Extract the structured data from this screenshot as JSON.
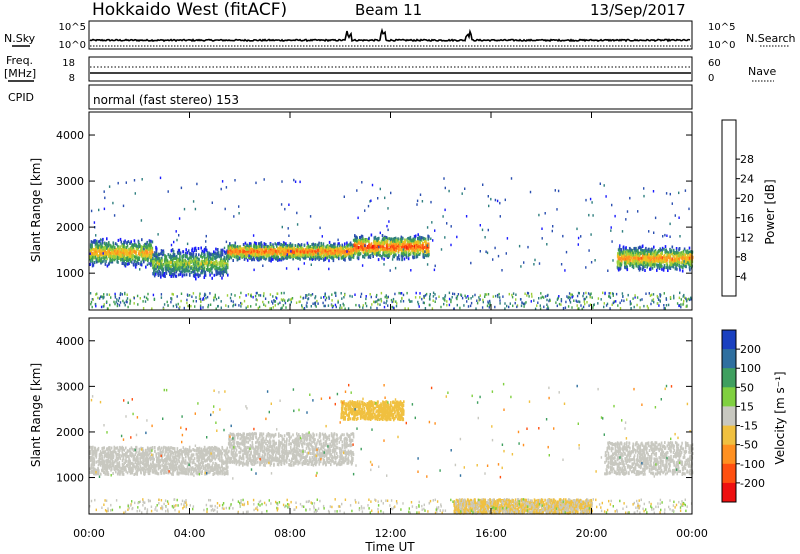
{
  "header": {
    "radar": "Hokkaido West (fitACF)",
    "beam": "Beam 11",
    "date": "13/Sep/2017"
  },
  "noise_panel": {
    "left_label": "N.Sky",
    "right_label": "N.Search",
    "left_ticks": [
      "10^5",
      "10^0"
    ],
    "right_ticks": [
      "10^5",
      "10^0"
    ]
  },
  "freq_panel": {
    "left_label_1": "Freq.",
    "left_label_2": "[MHz]",
    "left_ticks": [
      "18",
      "8"
    ],
    "right_label": "Nave",
    "right_ticks": [
      "60",
      "0"
    ]
  },
  "cpid_panel": {
    "label": "CPID",
    "text": "normal (fast stereo) 153"
  },
  "time_axis": {
    "ticks": [
      "00:00",
      "04:00",
      "08:00",
      "12:00",
      "16:00",
      "20:00",
      "00:00"
    ],
    "label": "Time UT"
  },
  "range_axis": {
    "label": "Slant Range [km]",
    "ticks": [
      "1000",
      "2000",
      "3000",
      "4000"
    ]
  },
  "power_scale": {
    "label": "Power [dB]",
    "ticks": [
      "4",
      "8",
      "12",
      "16",
      "20",
      "24",
      "28"
    ],
    "colors": [
      "#1a1aff",
      "#2b4fb0",
      "#2f7f7f",
      "#40a050",
      "#9ecf3a",
      "#f0c020",
      "#ff9020",
      "#ff5010",
      "#ee1010"
    ]
  },
  "velocity_scale": {
    "label": "Velocity [m s⁻¹]",
    "ticks": [
      "200",
      "100",
      "50",
      "15",
      "-15",
      "-50",
      "-100",
      "-200"
    ],
    "colors": [
      "#1a40c0",
      "#2f6f9f",
      "#3f9f5f",
      "#80d040",
      "#c8c8c0",
      "#f0c040",
      "#ff9020",
      "#ff5010",
      "#ee1010"
    ]
  },
  "chart_data": [
    {
      "type": "heatmap",
      "title": "Power",
      "x_range": [
        "00:00",
        "24:00"
      ],
      "ylim": [
        200,
        4500
      ],
      "colorbar": {
        "label": "Power [dB]",
        "range": [
          0,
          32
        ]
      },
      "bands": [
        {
          "t_start": 0.0,
          "t_end": 2.5,
          "range_lo": 1250,
          "range_hi": 1700,
          "peak_db": 22
        },
        {
          "t_start": 2.5,
          "t_end": 5.5,
          "range_lo": 1000,
          "range_hi": 1500,
          "peak_db": 16
        },
        {
          "t_start": 5.5,
          "t_end": 10.5,
          "range_lo": 1350,
          "range_hi": 1650,
          "peak_db": 26
        },
        {
          "t_start": 10.5,
          "t_end": 13.5,
          "range_lo": 1400,
          "range_hi": 1800,
          "peak_db": 28
        },
        {
          "t_start": 21.0,
          "t_end": 24.0,
          "range_lo": 1150,
          "range_hi": 1550,
          "peak_db": 24
        }
      ]
    },
    {
      "type": "heatmap",
      "title": "Velocity",
      "x_range": [
        "00:00",
        "24:00"
      ],
      "ylim": [
        200,
        4500
      ],
      "colorbar": {
        "label": "Velocity [m s^-1]",
        "range": [
          -200,
          200
        ]
      },
      "bands": [
        {
          "t_start": 0.0,
          "t_end": 5.5,
          "range_lo": 1100,
          "range_hi": 1700,
          "velocity": 0
        },
        {
          "t_start": 5.5,
          "t_end": 10.5,
          "range_lo": 1300,
          "range_hi": 2000,
          "velocity": -10
        },
        {
          "t_start": 10.0,
          "t_end": 12.5,
          "range_lo": 2300,
          "range_hi": 2700,
          "velocity": -40
        },
        {
          "t_start": 14.5,
          "t_end": 20.0,
          "range_lo": 250,
          "range_hi": 550,
          "velocity": -30
        },
        {
          "t_start": 20.5,
          "t_end": 24.0,
          "range_lo": 1100,
          "range_hi": 1800,
          "velocity": 0
        }
      ]
    }
  ]
}
